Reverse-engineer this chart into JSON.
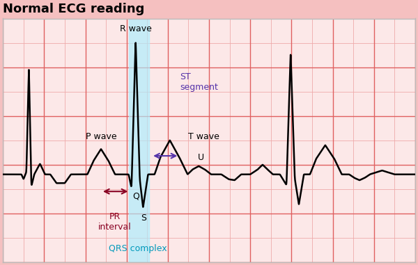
{
  "title": "Normal ECG reading",
  "title_fontsize": 13,
  "title_fontweight": "bold",
  "bg_color": "#f5c0c0",
  "inner_bg_color": "#fce8e8",
  "grid_major_color": "#e06060",
  "grid_minor_color": "#eeaaaa",
  "ecg_color": "black",
  "ecg_lw": 1.8,
  "qrs_highlight_color": "#aaeeff",
  "qrs_highlight_alpha": 0.65,
  "label_color_black": "black",
  "label_color_purple": "#5533aa",
  "label_color_dark_red": "#880022",
  "label_color_cyan": "#0099bb",
  "xlim": [
    0,
    10
  ],
  "ylim": [
    -1.8,
    3.2
  ],
  "labels": {
    "R_wave": "R wave",
    "P_wave": "P wave",
    "Q": "Q",
    "S": "S",
    "T_wave": "T wave",
    "U": "U",
    "PR_interval": "PR\ninterval",
    "ST_segment": "ST\nsegment",
    "QRS_complex": "QRS complex"
  }
}
